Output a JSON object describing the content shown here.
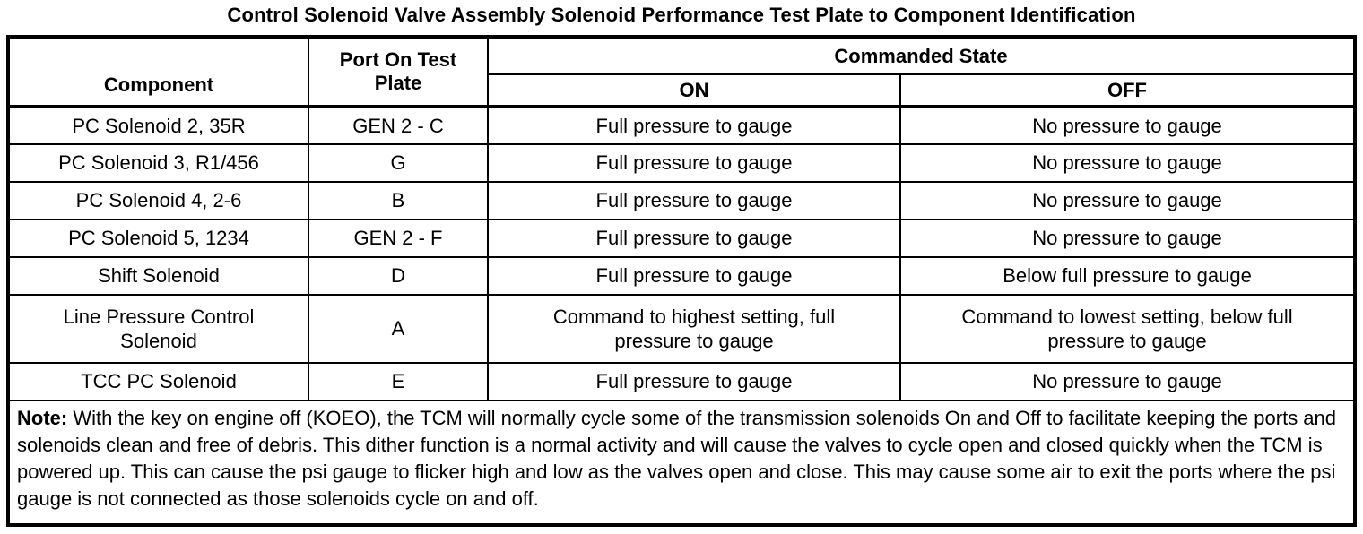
{
  "title": "Control Solenoid Valve Assembly Solenoid Performance Test Plate to Component Identification",
  "table": {
    "headers": {
      "component": "Component",
      "port": "Port On Test Plate",
      "commanded_state": "Commanded State",
      "on": "ON",
      "off": "OFF"
    },
    "rows": [
      {
        "component": "PC Solenoid 2, 35R",
        "port": "GEN 2 - C",
        "on": "Full pressure to gauge",
        "off": "No pressure to gauge"
      },
      {
        "component": "PC Solenoid 3, R1/456",
        "port": "G",
        "on": "Full pressure to gauge",
        "off": "No pressure to gauge"
      },
      {
        "component": "PC Solenoid 4, 2-6",
        "port": "B",
        "on": "Full pressure to gauge",
        "off": "No pressure to gauge"
      },
      {
        "component": "PC Solenoid 5, 1234",
        "port": "GEN 2 - F",
        "on": "Full pressure to gauge",
        "off": "No pressure to gauge"
      },
      {
        "component": "Shift Solenoid",
        "port": "D",
        "on": "Full pressure to gauge",
        "off": "Below full pressure to gauge"
      },
      {
        "component": "Line Pressure Control Solenoid",
        "port": "A",
        "on": "Command to highest setting, full pressure to gauge",
        "off": "Command to lowest setting, below full pressure to gauge"
      },
      {
        "component": "TCC PC Solenoid",
        "port": "E",
        "on": "Full pressure to gauge",
        "off": "No pressure to gauge"
      }
    ],
    "note": {
      "label": "Note:",
      "text": " With the key on engine off (KOEO), the TCM will normally cycle some of the transmission solenoids On and Off to facilitate keeping the ports and solenoids clean and free of debris. This dither function is a normal activity and will cause the valves to cycle open and closed quickly when the TCM is powered up. This can cause the psi gauge to flicker high and low as the valves open and close. This may cause some air to exit the ports where the psi gauge is not connected as those solenoids cycle on and off."
    }
  },
  "colors": {
    "text": "#000000",
    "border": "#000000",
    "background": "#ffffff"
  }
}
